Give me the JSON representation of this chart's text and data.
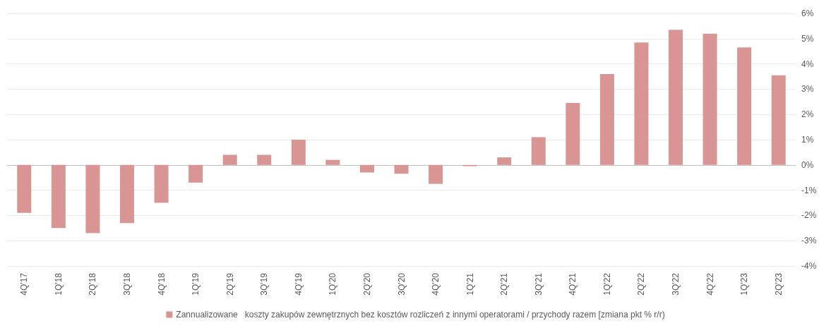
{
  "chart_data": {
    "type": "bar",
    "categories": [
      "4Q'17",
      "1Q'18",
      "2Q'18",
      "3Q'18",
      "4Q'18",
      "1Q'19",
      "2Q'19",
      "3Q'19",
      "4Q'19",
      "1Q'20",
      "2Q'20",
      "3Q'20",
      "4Q'20",
      "1Q'21",
      "2Q'21",
      "3Q'21",
      "4Q'21",
      "1Q'22",
      "2Q'22",
      "3Q'22",
      "4Q'22",
      "1Q'23",
      "2Q'23"
    ],
    "series": [
      {
        "name": "Zannualizowane   koszty zakupów zewnętrznych bez kosztów rozliczeń z innymi operatorami / przychody razem [zmiana pkt % r/r)",
        "color": "#d99594",
        "values": [
          -1.9,
          -2.5,
          -2.7,
          -2.3,
          -1.5,
          -0.7,
          0.4,
          0.4,
          1.0,
          0.2,
          -0.3,
          -0.35,
          -0.75,
          -0.05,
          0.3,
          1.1,
          2.45,
          3.6,
          4.85,
          5.35,
          5.2,
          4.65,
          3.55
        ]
      }
    ],
    "ylim": [
      -4,
      6
    ],
    "yticks": [
      {
        "value": -4,
        "label": "-4%"
      },
      {
        "value": -3,
        "label": "-3%"
      },
      {
        "value": -2,
        "label": "-2%"
      },
      {
        "value": -1,
        "label": "-1%"
      },
      {
        "value": 0,
        "label": "0%"
      },
      {
        "value": 1,
        "label": "1%"
      },
      {
        "value": 2,
        "label": "2%"
      },
      {
        "value": 3,
        "label": "3%"
      },
      {
        "value": 4,
        "label": "4%"
      },
      {
        "value": 5,
        "label": "5%"
      },
      {
        "value": 6,
        "label": "6%"
      }
    ],
    "grid": "y",
    "legend": "bottom"
  }
}
